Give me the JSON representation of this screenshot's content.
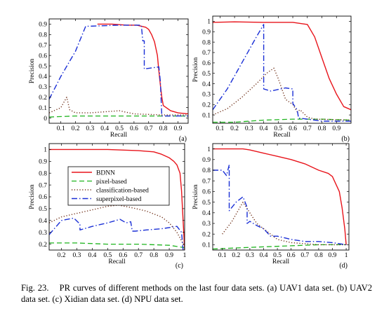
{
  "legend": {
    "entries": [
      {
        "label": "BDNN",
        "color": "#e8141b",
        "dash": "solid"
      },
      {
        "label": "pixel-based",
        "color": "#1fb41f",
        "dash": "dashed"
      },
      {
        "label": "classification-based",
        "color": "#6b2a12",
        "dash": "dotted"
      },
      {
        "label": "superpixel-based",
        "color": "#1a2fd6",
        "dash": "dashdot"
      }
    ]
  },
  "caption": {
    "prefix": "Fig. 23.",
    "text": "PR curves of different methods on the last four data sets. (a) UAV1 data set. (b) UAV2 data set. (c) Xidian data set. (d) NPU data set."
  },
  "chart_data": [
    {
      "type": "line",
      "panel_label": "(a)",
      "xlabel": "Recall",
      "ylabel": "Precision",
      "xlim": [
        0.02,
        0.97
      ],
      "ylim": [
        -0.05,
        0.95
      ],
      "xticks": [
        "0.1",
        "0.2",
        "0.3",
        "0.4",
        "0.5",
        "0.6",
        "0.7",
        "0.8",
        "0.9"
      ],
      "xtick_values": [
        0.1,
        0.2,
        0.3,
        0.4,
        0.5,
        0.6,
        0.7,
        0.8,
        0.9
      ],
      "yticks": [
        "0",
        "0.1",
        "0.2",
        "0.3",
        "0.4",
        "0.5",
        "0.6",
        "0.7",
        "0.8",
        "0.9"
      ],
      "ytick_values": [
        0,
        0.1,
        0.2,
        0.3,
        0.4,
        0.5,
        0.6,
        0.7,
        0.8,
        0.9
      ],
      "series": [
        {
          "name": "BDNN",
          "x": [
            0.35,
            0.45,
            0.55,
            0.62,
            0.65,
            0.68,
            0.7,
            0.72,
            0.74,
            0.76,
            0.77,
            0.78,
            0.79,
            0.8,
            0.85,
            0.9,
            0.97
          ],
          "y": [
            0.9,
            0.9,
            0.89,
            0.89,
            0.88,
            0.87,
            0.85,
            0.8,
            0.73,
            0.6,
            0.45,
            0.32,
            0.2,
            0.12,
            0.07,
            0.05,
            0.04
          ]
        },
        {
          "name": "pixel-based",
          "x": [
            0.02,
            0.2,
            0.4,
            0.6,
            0.8,
            0.97
          ],
          "y": [
            0.01,
            0.02,
            0.02,
            0.02,
            0.02,
            0.02
          ]
        },
        {
          "name": "classification-based",
          "x": [
            0.02,
            0.1,
            0.14,
            0.16,
            0.2,
            0.3,
            0.5,
            0.6,
            0.8,
            0.97
          ],
          "y": [
            0.05,
            0.1,
            0.2,
            0.08,
            0.05,
            0.05,
            0.07,
            0.04,
            0.03,
            0.03
          ]
        },
        {
          "name": "superpixel-based",
          "x": [
            0.02,
            0.1,
            0.2,
            0.27,
            0.3,
            0.5,
            0.65,
            0.66,
            0.67,
            0.67,
            0.77,
            0.78,
            0.79,
            0.8,
            0.97
          ],
          "y": [
            0.18,
            0.4,
            0.64,
            0.88,
            0.88,
            0.89,
            0.89,
            0.74,
            0.74,
            0.47,
            0.49,
            0.35,
            0.02,
            0.02,
            0.02
          ]
        }
      ]
    },
    {
      "type": "line",
      "panel_label": "(b)",
      "xlabel": "Recall",
      "ylabel": "Precision",
      "xlim": [
        0.05,
        1.0
      ],
      "ylim": [
        0.02,
        1.05
      ],
      "xticks": [
        "0.1",
        "0.2",
        "0.3",
        "0.4",
        "0.5",
        "0.6",
        "0.7",
        "0.8",
        "0.9"
      ],
      "xtick_values": [
        0.1,
        0.2,
        0.3,
        0.4,
        0.5,
        0.6,
        0.7,
        0.8,
        0.9
      ],
      "yticks": [
        "0.1",
        "0.2",
        "0.3",
        "0.4",
        "0.5",
        "0.6",
        "0.7",
        "0.8",
        "0.9",
        "1"
      ],
      "ytick_values": [
        0.1,
        0.2,
        0.3,
        0.4,
        0.5,
        0.6,
        0.7,
        0.8,
        0.9,
        1.0
      ],
      "series": [
        {
          "name": "BDNN",
          "x": [
            0.05,
            0.2,
            0.4,
            0.6,
            0.7,
            0.75,
            0.8,
            0.85,
            0.9,
            0.95,
            1.0
          ],
          "y": [
            0.99,
            0.995,
            0.99,
            0.99,
            0.97,
            0.85,
            0.65,
            0.45,
            0.3,
            0.18,
            0.15
          ]
        },
        {
          "name": "pixel-based",
          "x": [
            0.05,
            0.2,
            0.4,
            0.6,
            0.8,
            1.0
          ],
          "y": [
            0.03,
            0.03,
            0.05,
            0.06,
            0.06,
            0.05
          ]
        },
        {
          "name": "classification-based",
          "x": [
            0.05,
            0.15,
            0.25,
            0.35,
            0.42,
            0.47,
            0.5,
            0.55,
            0.6,
            0.63,
            0.65,
            0.7,
            0.75,
            1.0
          ],
          "y": [
            0.1,
            0.16,
            0.27,
            0.4,
            0.5,
            0.55,
            0.45,
            0.25,
            0.2,
            0.13,
            0.15,
            0.08,
            0.06,
            0.05
          ]
        },
        {
          "name": "superpixel-based",
          "x": [
            0.05,
            0.15,
            0.25,
            0.35,
            0.4,
            0.4,
            0.45,
            0.55,
            0.6,
            0.6,
            0.63,
            0.64,
            0.7,
            0.8,
            1.0
          ],
          "y": [
            0.15,
            0.35,
            0.6,
            0.85,
            0.97,
            0.35,
            0.33,
            0.36,
            0.35,
            0.21,
            0.15,
            0.07,
            0.06,
            0.04,
            0.04
          ]
        }
      ]
    },
    {
      "type": "line",
      "panel_label": "(c)",
      "xlabel": "Recall",
      "ylabel": "Precision",
      "xlim": [
        0.12,
        1.0
      ],
      "ylim": [
        0.15,
        1.05
      ],
      "xticks": [
        "0.2",
        "0.3",
        "0.4",
        "0.5",
        "0.6",
        "0.7",
        "0.8",
        "0.9",
        "1"
      ],
      "xtick_values": [
        0.2,
        0.3,
        0.4,
        0.5,
        0.6,
        0.7,
        0.8,
        0.9,
        1.0
      ],
      "yticks": [
        "0.2",
        "0.3",
        "0.4",
        "0.5",
        "0.6",
        "0.7",
        "0.8",
        "0.9",
        "1"
      ],
      "ytick_values": [
        0.2,
        0.3,
        0.4,
        0.5,
        0.6,
        0.7,
        0.8,
        0.9,
        1.0
      ],
      "series": [
        {
          "name": "BDNN",
          "x": [
            0.12,
            0.3,
            0.5,
            0.7,
            0.8,
            0.85,
            0.9,
            0.93,
            0.95,
            0.97,
            0.98,
            0.99,
            1.0
          ],
          "y": [
            1.0,
            1.0,
            1.0,
            0.99,
            0.98,
            0.96,
            0.93,
            0.9,
            0.87,
            0.8,
            0.65,
            0.4,
            0.15
          ]
        },
        {
          "name": "pixel-based",
          "x": [
            0.12,
            0.3,
            0.5,
            0.7,
            0.9,
            0.95,
            1.0
          ],
          "y": [
            0.21,
            0.21,
            0.2,
            0.2,
            0.19,
            0.18,
            0.17
          ]
        },
        {
          "name": "classification-based",
          "x": [
            0.12,
            0.2,
            0.3,
            0.4,
            0.5,
            0.57,
            0.65,
            0.75,
            0.85,
            0.9,
            0.95,
            1.0
          ],
          "y": [
            0.38,
            0.43,
            0.46,
            0.49,
            0.52,
            0.53,
            0.51,
            0.48,
            0.43,
            0.38,
            0.3,
            0.18
          ]
        },
        {
          "name": "superpixel-based",
          "x": [
            0.12,
            0.2,
            0.28,
            0.32,
            0.32,
            0.4,
            0.5,
            0.58,
            0.62,
            0.65,
            0.66,
            0.68,
            0.75,
            0.85,
            0.95,
            0.98,
            0.99
          ],
          "y": [
            0.28,
            0.4,
            0.42,
            0.37,
            0.32,
            0.35,
            0.38,
            0.41,
            0.38,
            0.39,
            0.31,
            0.31,
            0.32,
            0.33,
            0.35,
            0.3,
            0.15
          ]
        }
      ]
    },
    {
      "type": "line",
      "panel_label": "(d)",
      "xlabel": "Recall",
      "ylabel": "Precision",
      "xlim": [
        0.03,
        1.02
      ],
      "ylim": [
        0.05,
        1.05
      ],
      "xticks": [
        "0.1",
        "0.2",
        "0.3",
        "0.4",
        "0.5",
        "0.6",
        "0.7",
        "0.8",
        "0.9",
        "1"
      ],
      "xtick_values": [
        0.1,
        0.2,
        0.3,
        0.4,
        0.5,
        0.6,
        0.7,
        0.8,
        0.9,
        1.0
      ],
      "yticks": [
        "0.1",
        "0.2",
        "0.3",
        "0.4",
        "0.5",
        "0.6",
        "0.7",
        "0.8",
        "0.9",
        "1"
      ],
      "ytick_values": [
        0.1,
        0.2,
        0.3,
        0.4,
        0.5,
        0.6,
        0.7,
        0.8,
        0.9,
        1.0
      ],
      "series": [
        {
          "name": "BDNN",
          "x": [
            0.03,
            0.15,
            0.25,
            0.3,
            0.4,
            0.5,
            0.6,
            0.7,
            0.8,
            0.87,
            0.9,
            0.95,
            0.97,
            0.99,
            1.0
          ],
          "y": [
            1.0,
            1.0,
            1.0,
            0.99,
            0.96,
            0.93,
            0.9,
            0.86,
            0.8,
            0.77,
            0.74,
            0.6,
            0.45,
            0.25,
            0.1
          ]
        },
        {
          "name": "pixel-based",
          "x": [
            0.03,
            0.2,
            0.4,
            0.6,
            0.8,
            1.0
          ],
          "y": [
            0.06,
            0.07,
            0.08,
            0.09,
            0.1,
            0.1
          ]
        },
        {
          "name": "classification-based",
          "x": [
            0.1,
            0.17,
            0.25,
            0.3,
            0.35,
            0.4,
            0.45,
            0.5,
            0.6,
            0.8,
            1.0
          ],
          "y": [
            0.2,
            0.32,
            0.5,
            0.4,
            0.3,
            0.25,
            0.2,
            0.15,
            0.12,
            0.1,
            0.1
          ]
        },
        {
          "name": "superpixel-based",
          "x": [
            0.03,
            0.1,
            0.13,
            0.15,
            0.15,
            0.2,
            0.25,
            0.28,
            0.28,
            0.3,
            0.35,
            0.4,
            0.45,
            0.5,
            0.6,
            0.7,
            0.8,
            0.9,
            1.0
          ],
          "y": [
            0.8,
            0.8,
            0.75,
            0.85,
            0.42,
            0.5,
            0.55,
            0.45,
            0.3,
            0.32,
            0.28,
            0.25,
            0.18,
            0.18,
            0.15,
            0.13,
            0.13,
            0.12,
            0.1
          ]
        }
      ]
    }
  ]
}
